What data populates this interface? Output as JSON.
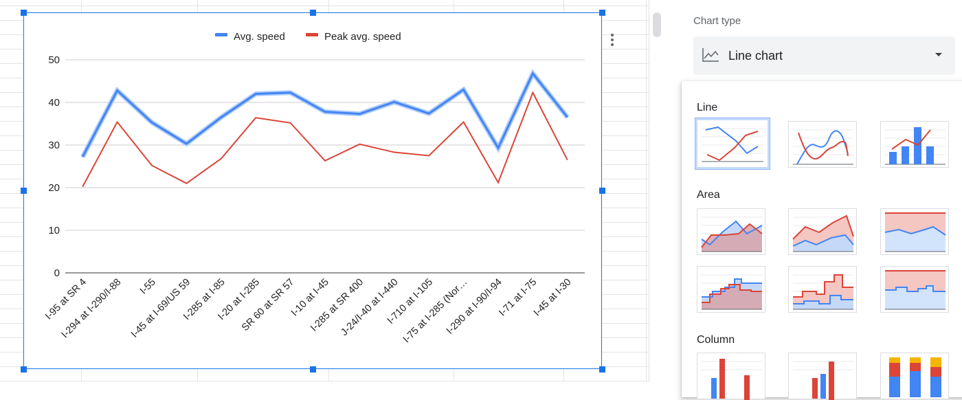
{
  "colors": {
    "avg": "#4285f4",
    "peak": "#db4437",
    "accent": "#1a73e8"
  },
  "chart_data": {
    "type": "line",
    "title": "",
    "xlabel": "",
    "ylabel": "",
    "categories": [
      "I-95 at SR 4",
      "I-294 at I-290/I-88",
      "I-55",
      "I-45 at I-69/US 59",
      "I-285 at I-85",
      "I-20 at I-285",
      "SR 60 at SR 57",
      "I-10 at I-45",
      "I-285 at SR 400",
      "J-24/I-40 at I-440",
      "I-710 at I-105",
      "I-75 at I-285 (Nor…",
      "I-290 at I-90/I-94",
      "I-71 at I-75",
      "I-45 at I-30"
    ],
    "series": [
      {
        "name": "Avg. speed",
        "color": "#4285f4",
        "values": [
          27.2,
          42.8,
          35.3,
          30.3,
          36.5,
          42.0,
          42.3,
          37.8,
          37.3,
          40.1,
          37.4,
          43.0,
          29.3,
          46.8,
          36.5
        ]
      },
      {
        "name": "Peak avg. speed",
        "color": "#db4437",
        "values": [
          20.2,
          35.4,
          25.2,
          21.0,
          26.8,
          36.4,
          35.2,
          26.3,
          30.2,
          28.3,
          27.5,
          35.4,
          21.2,
          42.3,
          26.5
        ]
      }
    ],
    "ylim": [
      0,
      50
    ],
    "yticks": [
      "0",
      "10",
      "20",
      "30",
      "40",
      "50"
    ],
    "grid": true,
    "legend": "top-center"
  },
  "panel": {
    "chart_type_label": "Chart type",
    "selected_type": "Line chart",
    "sections": {
      "line": "Line",
      "area": "Area",
      "column": "Column"
    }
  }
}
